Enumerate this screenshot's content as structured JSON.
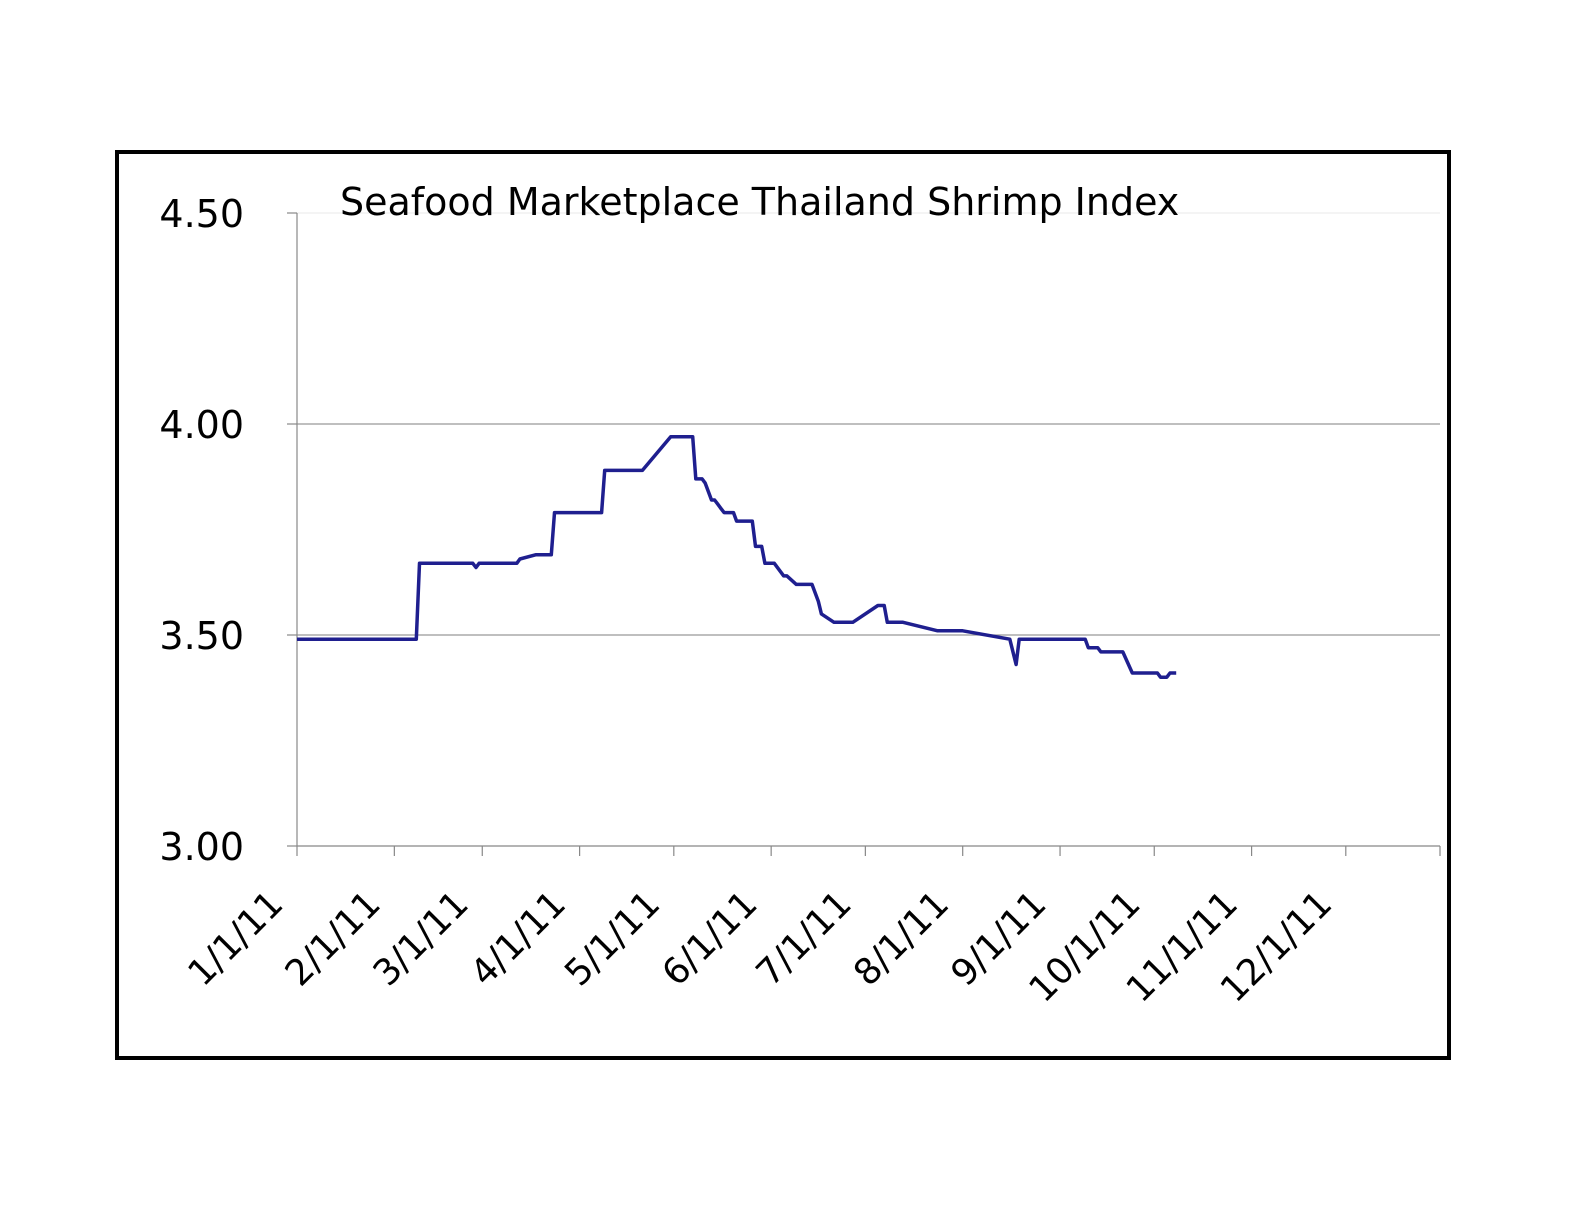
{
  "chart_data": {
    "type": "line",
    "title": "Seafood Marketplace Thailand Shrimp Index",
    "xlabel": "",
    "ylabel": "",
    "ylim": [
      3.0,
      4.5
    ],
    "xlim": [
      "1/1/11",
      "12/31/11"
    ],
    "yticks": [
      "3.00",
      "3.50",
      "4.00",
      "4.50"
    ],
    "xticks": [
      "1/1/11",
      "2/1/11",
      "3/1/11",
      "4/1/11",
      "5/1/11",
      "6/1/11",
      "7/1/11",
      "8/1/11",
      "9/1/11",
      "10/1/11",
      "11/1/11",
      "12/1/11"
    ],
    "grid": true,
    "legend": "none",
    "line_color": "#1f1f8f",
    "series": [
      {
        "x": [
          "1/1/11",
          "2/8/11",
          "2/9/11",
          "2/26/11",
          "2/27/11",
          "2/28/11",
          "3/12/11",
          "3/13/11",
          "3/18/11",
          "3/21/11",
          "3/23/11",
          "3/24/11",
          "3/25/11",
          "4/8/11",
          "4/9/11",
          "4/10/11",
          "4/19/11",
          "4/21/11",
          "4/30/11",
          "5/7/11",
          "5/8/11",
          "5/10/11",
          "5/11/11",
          "5/13/11",
          "5/14/11",
          "5/15/11",
          "5/16/11",
          "5/17/11",
          "5/20/11",
          "5/21/11",
          "5/26/11",
          "5/27/11",
          "5/29/11",
          "5/30/11",
          "6/2/11",
          "6/5/11",
          "6/6/11",
          "6/9/11",
          "6/10/11",
          "6/14/11",
          "6/16/11",
          "6/17/11",
          "6/21/11",
          "6/26/11",
          "6/27/11",
          "7/5/11",
          "7/6/11",
          "7/7/11",
          "7/8/11",
          "7/10/11",
          "7/13/11",
          "7/24/11",
          "7/26/11",
          "7/31/11",
          "8/1/11",
          "8/16/11",
          "8/18/11",
          "8/19/11",
          "9/5/11",
          "9/6/11",
          "9/9/11",
          "9/10/11",
          "9/13/11",
          "9/14/11",
          "9/16/11",
          "9/21/11",
          "9/24/11",
          "9/25/11",
          "9/27/11",
          "9/28/11",
          "9/29/11",
          "10/2/11",
          "10/3/11",
          "10/5/11",
          "10/6/11",
          "10/7/11",
          "10/8/11"
        ],
        "values": [
          3.49,
          3.49,
          3.67,
          3.67,
          3.66,
          3.67,
          3.67,
          3.68,
          3.69,
          3.69,
          3.69,
          3.79,
          3.79,
          3.79,
          3.89,
          3.89,
          3.89,
          3.89,
          3.97,
          3.97,
          3.87,
          3.87,
          3.86,
          3.82,
          3.82,
          3.81,
          3.8,
          3.79,
          3.79,
          3.77,
          3.77,
          3.71,
          3.71,
          3.67,
          3.67,
          3.64,
          3.64,
          3.62,
          3.62,
          3.62,
          3.58,
          3.55,
          3.53,
          3.53,
          3.53,
          3.57,
          3.57,
          3.57,
          3.53,
          3.53,
          3.53,
          3.51,
          3.51,
          3.51,
          3.51,
          3.49,
          3.43,
          3.49,
          3.49,
          3.49,
          3.49,
          3.47,
          3.47,
          3.46,
          3.46,
          3.46,
          3.41,
          3.41,
          3.41,
          3.41,
          3.41,
          3.41,
          3.4,
          3.4,
          3.41,
          3.41,
          3.41
        ]
      }
    ]
  }
}
